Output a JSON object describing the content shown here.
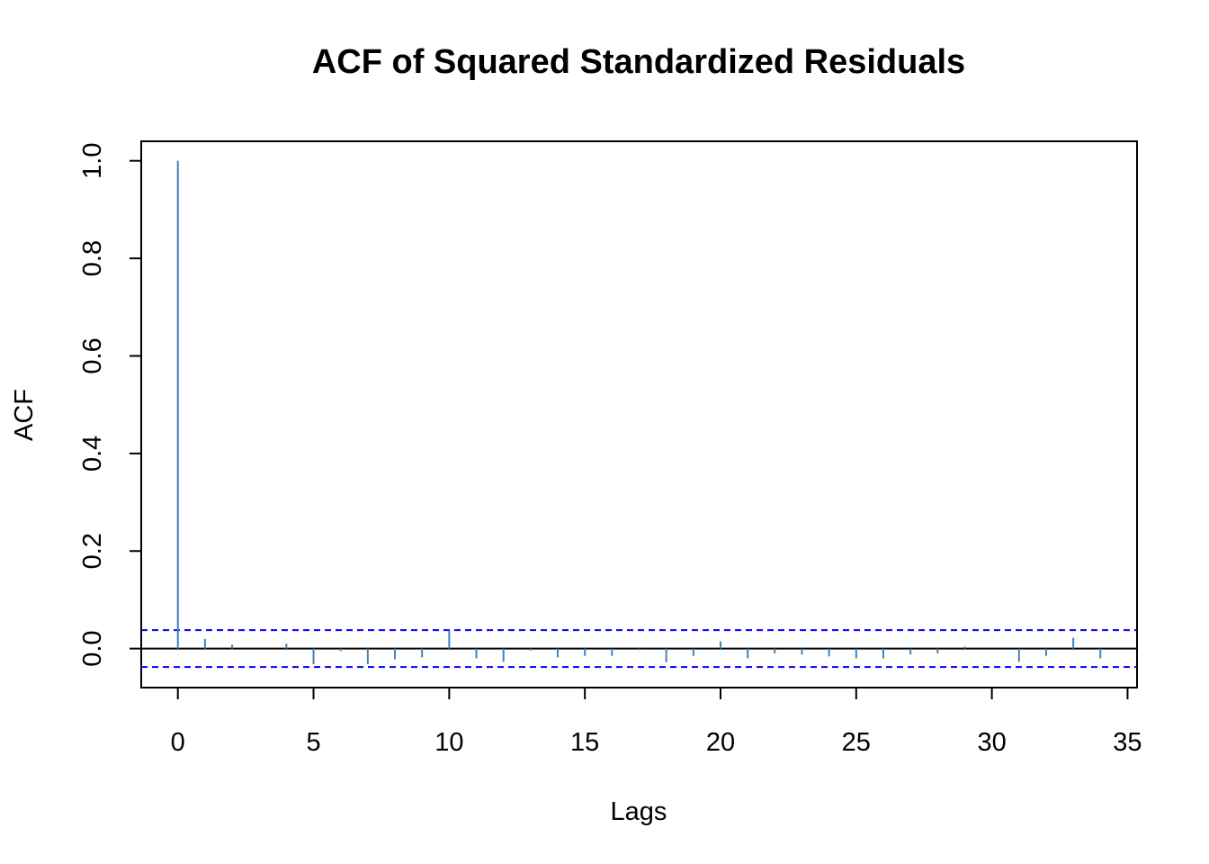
{
  "chart_data": {
    "type": "bar",
    "title": "ACF of Squared Standardized Residuals",
    "xlabel": "Lags",
    "ylabel": "ACF",
    "xlim": [
      -1.35,
      35.35
    ],
    "ylim": [
      -0.08,
      1.04
    ],
    "xticks": [
      "0",
      "5",
      "10",
      "15",
      "20",
      "25",
      "30",
      "35"
    ],
    "yticks": [
      "0.0",
      "0.2",
      "0.4",
      "0.6",
      "0.8",
      "1.0"
    ],
    "x": [
      0,
      1,
      2,
      3,
      4,
      5,
      6,
      7,
      8,
      9,
      10,
      11,
      12,
      13,
      14,
      15,
      16,
      17,
      18,
      19,
      20,
      21,
      22,
      23,
      24,
      25,
      26,
      27,
      28,
      29,
      30,
      31,
      32,
      33,
      34
    ],
    "values": [
      1.0,
      0.02,
      0.008,
      0.0,
      0.01,
      -0.032,
      -0.005,
      -0.032,
      -0.022,
      -0.018,
      0.037,
      -0.02,
      -0.027,
      -0.004,
      -0.018,
      -0.015,
      -0.015,
      -0.003,
      -0.028,
      -0.015,
      0.015,
      -0.02,
      -0.01,
      -0.012,
      -0.016,
      -0.02,
      -0.02,
      -0.012,
      -0.01,
      0.004,
      0.0,
      -0.027,
      -0.015,
      0.022,
      -0.02
    ],
    "confidence_bounds": [
      0.0378,
      -0.0378
    ],
    "colors": {
      "bars": "#4682b4",
      "bounds": "#0000ff",
      "zero_line": "#000000",
      "axes": "#000000"
    },
    "grid": false,
    "legend": "none"
  }
}
